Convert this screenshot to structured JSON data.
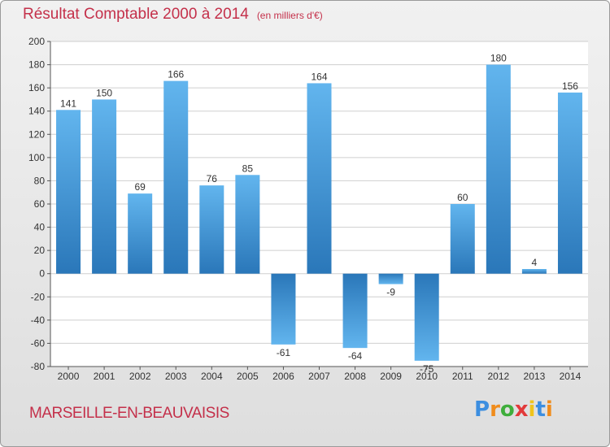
{
  "title": "Résultat Comptable 2000 à 2014",
  "unit_note": "(en milliers d'€)",
  "city": "MARSEILLE-EN-BEAUVAISIS",
  "logo": {
    "letters": [
      "P",
      "r",
      "o",
      "x",
      "i",
      "t",
      "i"
    ],
    "colors": [
      "#3c8ee0",
      "#f08c1c",
      "#3fae3c",
      "#e23a3a",
      "#f0c41c",
      "#3c8ee0",
      "#f08c1c"
    ]
  },
  "colors": {
    "bar_light": "#62b5ee",
    "bar_dark": "#2a77b9",
    "text": "#333333",
    "grid": "#cfcfcf",
    "brand": "#c4304a"
  },
  "chart_data": {
    "type": "bar",
    "categories": [
      "2000",
      "2001",
      "2002",
      "2003",
      "2004",
      "2005",
      "2006",
      "2007",
      "2008",
      "2009",
      "2010",
      "2011",
      "2012",
      "2013",
      "2014"
    ],
    "values": [
      141,
      150,
      69,
      166,
      76,
      85,
      -61,
      164,
      -64,
      -9,
      -75,
      60,
      180,
      4,
      156
    ],
    "ylim": [
      -80,
      200
    ],
    "yticks": [
      -80,
      -60,
      -40,
      -20,
      0,
      20,
      40,
      60,
      80,
      100,
      120,
      140,
      160,
      180,
      200
    ],
    "grid": true,
    "legend": "none"
  }
}
